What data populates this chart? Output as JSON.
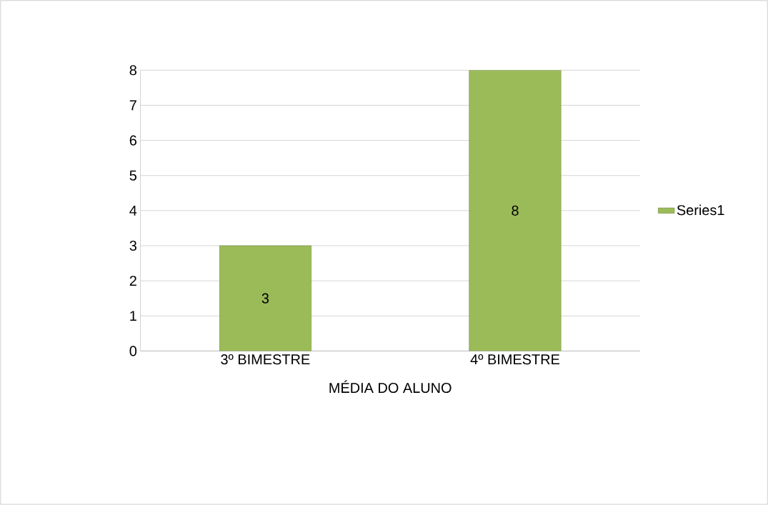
{
  "chart_data": {
    "type": "bar",
    "xlabel": "MÉDIA DO ALUNO",
    "categories": [
      "3º BIMESTRE",
      "4º BIMESTRE"
    ],
    "series": [
      {
        "name": "Series1",
        "color": "#9bbb59",
        "values": [
          3,
          8
        ]
      }
    ],
    "ylim": [
      0,
      8
    ],
    "yticks": [
      0,
      1,
      2,
      3,
      4,
      5,
      6,
      7,
      8
    ],
    "grid": "y",
    "legend": "right",
    "data_labels": true
  }
}
